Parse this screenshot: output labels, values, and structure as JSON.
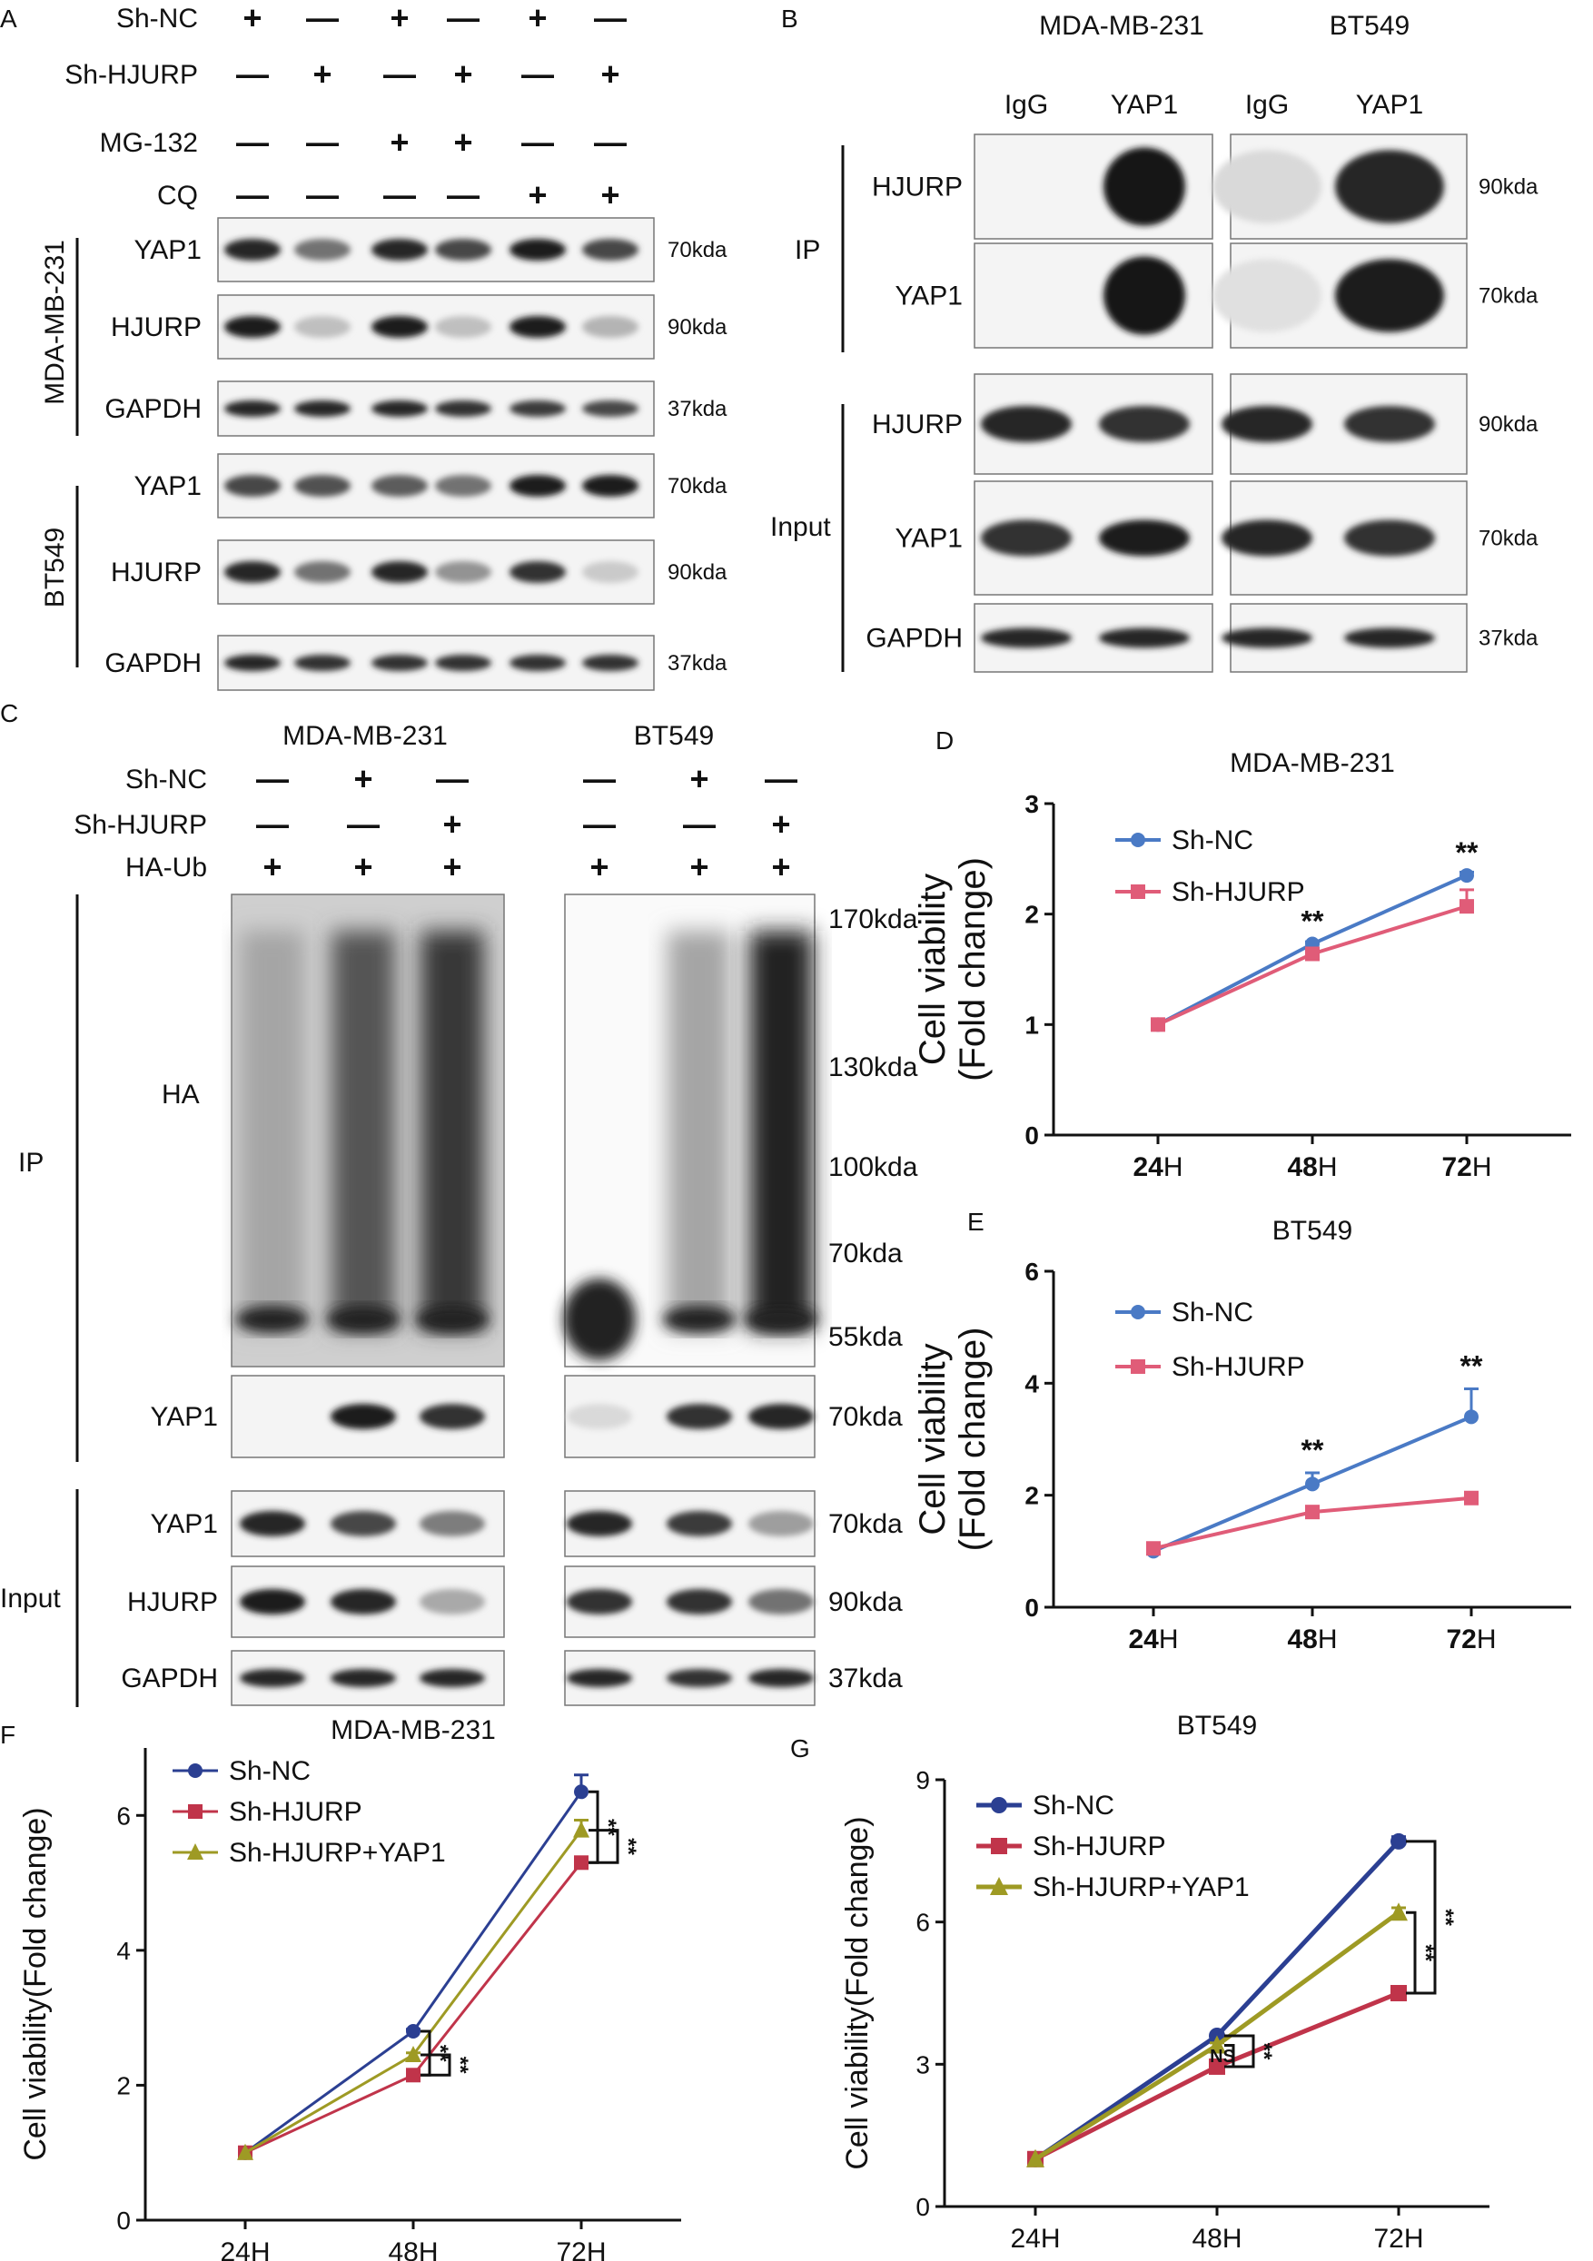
{
  "panel_letters": {
    "A": "A",
    "B": "B",
    "C": "C",
    "D": "D",
    "E": "E",
    "F": "F",
    "G": "G"
  },
  "panel_a": {
    "treatments": [
      {
        "label": "Sh-NC",
        "signs": [
          "+",
          "—",
          "+",
          "—",
          "+",
          "—"
        ]
      },
      {
        "label": "Sh-HJURP",
        "signs": [
          "—",
          "+",
          "—",
          "+",
          "—",
          "+"
        ]
      },
      {
        "label": "MG-132",
        "signs": [
          "—",
          "—",
          "+",
          "+",
          "—",
          "—"
        ]
      },
      {
        "label": "CQ",
        "signs": [
          "—",
          "—",
          "—",
          "—",
          "+",
          "+"
        ]
      }
    ],
    "groups": [
      {
        "cell_line": "MDA-MB-231",
        "blots": [
          {
            "label": "YAP1",
            "mw": "70kda",
            "intensity": [
              0.9,
              0.55,
              0.9,
              0.75,
              0.95,
              0.75
            ]
          },
          {
            "label": "HJURP",
            "mw": "90kda",
            "intensity": [
              0.95,
              0.2,
              0.95,
              0.2,
              0.95,
              0.25
            ]
          },
          {
            "label": "GAPDH",
            "mw": "37kda",
            "intensity": [
              0.9,
              0.9,
              0.9,
              0.85,
              0.8,
              0.75
            ]
          }
        ]
      },
      {
        "cell_line": "BT549",
        "blots": [
          {
            "label": "YAP1",
            "mw": "70kda",
            "intensity": [
              0.75,
              0.7,
              0.65,
              0.55,
              0.95,
              0.95
            ]
          },
          {
            "label": "HJURP",
            "mw": "90kda",
            "intensity": [
              0.9,
              0.55,
              0.9,
              0.4,
              0.85,
              0.15
            ]
          },
          {
            "label": "GAPDH",
            "mw": "37kda",
            "intensity": [
              0.9,
              0.85,
              0.85,
              0.85,
              0.85,
              0.85
            ]
          }
        ]
      }
    ]
  },
  "panel_b": {
    "cell_lines": [
      "MDA-MB-231",
      "BT549"
    ],
    "lanes": [
      "IgG",
      "YAP1",
      "IgG",
      "YAP1"
    ],
    "sections": [
      {
        "label": "IP",
        "rows": [
          {
            "label": "HJURP",
            "mw": "90kda",
            "intensity": [
              0.0,
              0.98,
              0.08,
              0.9
            ]
          },
          {
            "label": "YAP1",
            "mw": "70kda",
            "intensity": [
              0.0,
              0.98,
              0.05,
              0.95
            ]
          }
        ]
      },
      {
        "label": "Input",
        "rows": [
          {
            "label": "HJURP",
            "mw": "90kda",
            "intensity": [
              0.9,
              0.85,
              0.9,
              0.85
            ]
          },
          {
            "label": "YAP1",
            "mw": "70kda",
            "intensity": [
              0.85,
              0.95,
              0.9,
              0.85
            ]
          },
          {
            "label": "GAPDH",
            "mw": "37kda",
            "intensity": [
              0.9,
              0.9,
              0.9,
              0.9
            ]
          }
        ]
      }
    ]
  },
  "panel_c": {
    "cell_lines": [
      "MDA-MB-231",
      "BT549"
    ],
    "treatments": [
      {
        "label": "Sh-NC",
        "signs": [
          "—",
          "+",
          "—"
        ]
      },
      {
        "label": "Sh-HJURP",
        "signs": [
          "—",
          "—",
          "+"
        ]
      },
      {
        "label": "HA-Ub",
        "signs": [
          "+",
          "+",
          "+"
        ]
      }
    ],
    "ip_label": "IP",
    "input_label": "Input",
    "ha_label": "HA",
    "ha_markers": [
      "170kda",
      "130kda",
      "100kda",
      "70kda",
      "55kda"
    ],
    "ha_smear": {
      "MDA-MB-231": [
        0.3,
        0.7,
        0.85
      ],
      "BT549": [
        0.0,
        0.3,
        0.95
      ]
    },
    "ip_rows": [
      {
        "label": "YAP1",
        "mw": "70kda",
        "intensity": {
          "MDA-MB-231": [
            0.0,
            0.95,
            0.85
          ],
          "BT549": [
            0.08,
            0.85,
            0.9
          ]
        }
      }
    ],
    "input_rows": [
      {
        "label": "YAP1",
        "mw": "70kda",
        "intensity": {
          "MDA-MB-231": [
            0.9,
            0.75,
            0.5
          ],
          "BT549": [
            0.9,
            0.8,
            0.35
          ]
        }
      },
      {
        "label": "HJURP",
        "mw": "90kda",
        "intensity": {
          "MDA-MB-231": [
            0.95,
            0.9,
            0.3
          ],
          "BT549": [
            0.85,
            0.85,
            0.55
          ]
        }
      },
      {
        "label": "GAPDH",
        "mw": "37kda",
        "intensity": {
          "MDA-MB-231": [
            0.9,
            0.9,
            0.9
          ],
          "BT549": [
            0.9,
            0.85,
            0.9
          ]
        }
      }
    ]
  },
  "chart_data": [
    {
      "panel": "D",
      "type": "line",
      "title": "MDA-MB-231",
      "ylabel": [
        "Cell viability",
        "(Fold change)"
      ],
      "xlabel": "",
      "categories": [
        "24",
        "48",
        "72"
      ],
      "tick_suffix": "H",
      "ylim": [
        0,
        3
      ],
      "yticks": [
        0,
        1,
        2,
        3
      ],
      "series": [
        {
          "name": "Sh-NC",
          "color": "#4a7ac5",
          "marker": "circle",
          "values": [
            1.0,
            1.73,
            2.35
          ],
          "errors": [
            0,
            0.02,
            0.03
          ]
        },
        {
          "name": "Sh-HJURP",
          "color": "#e05c78",
          "marker": "square",
          "values": [
            1.0,
            1.64,
            2.07
          ],
          "errors": [
            0,
            0.03,
            0.15
          ]
        }
      ],
      "annotations": [
        {
          "x": "48",
          "text": "**",
          "above": 1.73
        },
        {
          "x": "72",
          "text": "**",
          "above": 2.35
        }
      ],
      "legend": "top-left",
      "grid": false
    },
    {
      "panel": "E",
      "type": "line",
      "title": "BT549",
      "ylabel": [
        "Cell viability",
        "(Fold change)"
      ],
      "xlabel": "",
      "categories": [
        "24",
        "48",
        "72"
      ],
      "tick_suffix": "H",
      "ylim": [
        0,
        6
      ],
      "yticks": [
        0,
        2,
        4,
        6
      ],
      "series": [
        {
          "name": "Sh-NC",
          "color": "#4a7ac5",
          "marker": "circle",
          "values": [
            1.0,
            2.2,
            3.4
          ],
          "errors": [
            0,
            0.2,
            0.5
          ]
        },
        {
          "name": "Sh-HJURP",
          "color": "#e05c78",
          "marker": "square",
          "values": [
            1.05,
            1.7,
            1.95
          ],
          "errors": [
            0.05,
            0.05,
            0.1
          ]
        }
      ],
      "annotations": [
        {
          "x": "48",
          "text": "**",
          "above": 2.4
        },
        {
          "x": "72",
          "text": "**",
          "above": 3.9
        }
      ],
      "legend": "top-left",
      "grid": false
    },
    {
      "panel": "F",
      "type": "line",
      "title": "MDA-MB-231",
      "ylabel": [
        "Cell viability(Fold change)"
      ],
      "xlabel": "",
      "categories": [
        "24H",
        "48H",
        "72H"
      ],
      "tick_suffix": "",
      "ylim": [
        0,
        7
      ],
      "yticks": [
        0,
        2,
        4,
        6
      ],
      "series": [
        {
          "name": "Sh-NC",
          "color": "#2b3f92",
          "marker": "circle",
          "values": [
            1.0,
            2.8,
            6.35
          ],
          "errors": [
            0,
            0.03,
            0.25
          ]
        },
        {
          "name": "Sh-HJURP",
          "color": "#c0344a",
          "marker": "square",
          "values": [
            1.0,
            2.15,
            5.3
          ],
          "errors": [
            0,
            0.03,
            0.05
          ]
        },
        {
          "name": "Sh-HJURP+YAP1",
          "color": "#9e9a24",
          "marker": "triangle",
          "values": [
            1.0,
            2.45,
            5.78
          ],
          "errors": [
            0,
            0.03,
            0.15
          ]
        }
      ],
      "brackets": [
        {
          "x": "48H",
          "pairs": [
            [
              "Sh-NC",
              "Sh-HJURP",
              "**"
            ],
            [
              "Sh-HJURP+YAP1",
              "Sh-HJURP",
              "**"
            ]
          ]
        },
        {
          "x": "72H",
          "pairs": [
            [
              "Sh-NC",
              "Sh-HJURP",
              "**"
            ],
            [
              "Sh-HJURP+YAP1",
              "Sh-HJURP",
              "**"
            ]
          ]
        }
      ],
      "legend": "top-left",
      "grid": false
    },
    {
      "panel": "G",
      "type": "line",
      "title": "BT549",
      "ylabel": [
        "Cell viability(Fold change)"
      ],
      "xlabel": "",
      "categories": [
        "24H",
        "48H",
        "72H"
      ],
      "tick_suffix": "",
      "ylim": [
        0,
        9
      ],
      "yticks": [
        0,
        3,
        6,
        9
      ],
      "series": [
        {
          "name": "Sh-NC",
          "color": "#2b3f92",
          "marker": "circle",
          "values": [
            1.0,
            3.6,
            7.7
          ],
          "errors": [
            0,
            0.05,
            0.1
          ]
        },
        {
          "name": "Sh-HJURP",
          "color": "#c0344a",
          "marker": "square",
          "values": [
            1.0,
            2.95,
            4.5
          ],
          "errors": [
            0,
            0.05,
            0.1
          ]
        },
        {
          "name": "Sh-HJURP+YAP1",
          "color": "#9e9a24",
          "marker": "triangle",
          "values": [
            1.0,
            3.4,
            6.2
          ],
          "errors": [
            0,
            0.05,
            0.1
          ]
        }
      ],
      "brackets": [
        {
          "x": "48H",
          "pairs": [
            [
              "Sh-HJURP+YAP1",
              "Sh-HJURP",
              "NS"
            ],
            [
              "Sh-NC",
              "Sh-HJURP",
              "**"
            ]
          ]
        },
        {
          "x": "72H",
          "pairs": [
            [
              "Sh-HJURP+YAP1",
              "Sh-HJURP",
              "**"
            ],
            [
              "Sh-NC",
              "Sh-HJURP",
              "**"
            ]
          ]
        }
      ],
      "legend": "top-left",
      "grid": false
    }
  ]
}
